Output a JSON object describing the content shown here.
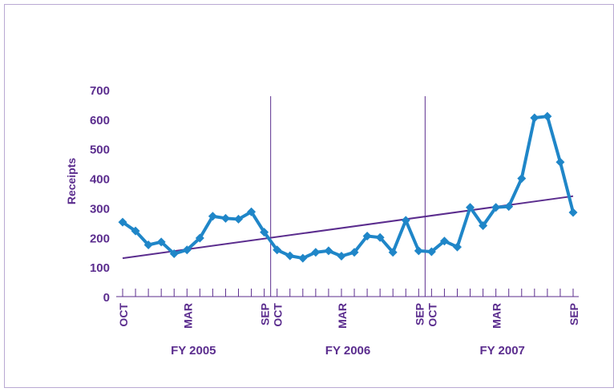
{
  "chart_data": {
    "type": "line",
    "ylabel": "Receipts",
    "categories": [
      "OCT",
      null,
      null,
      null,
      null,
      "MAR",
      null,
      null,
      null,
      null,
      null,
      "SEP",
      "OCT",
      null,
      null,
      null,
      null,
      "MAR",
      null,
      null,
      null,
      null,
      null,
      "SEP",
      "OCT",
      null,
      null,
      null,
      null,
      "MAR",
      null,
      null,
      null,
      null,
      null,
      "SEP"
    ],
    "groups": [
      "FY 2005",
      "FY 2006",
      "FY 2007"
    ],
    "series": [
      {
        "color": "#1f86c8",
        "values": [
          252,
          222,
          175,
          185,
          145,
          158,
          198,
          272,
          265,
          262,
          287,
          218,
          158,
          138,
          130,
          150,
          155,
          137,
          150,
          205,
          200,
          150,
          258,
          155,
          152,
          188,
          168,
          302,
          240,
          302,
          305,
          400,
          605,
          610,
          455,
          285
        ]
      }
    ],
    "trend": {
      "color": "#5b2d8e",
      "start": 130,
      "end": 340
    },
    "ylim": [
      0,
      700
    ],
    "yticks": [
      0,
      100,
      200,
      300,
      400,
      500,
      600,
      700
    ]
  }
}
